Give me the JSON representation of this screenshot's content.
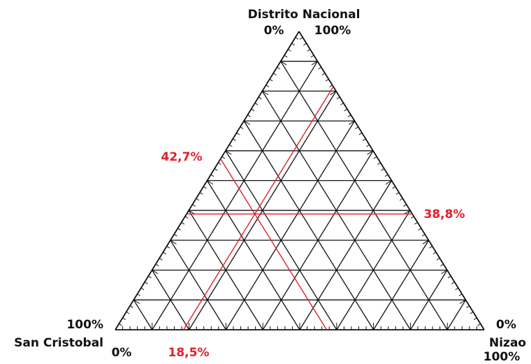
{
  "vertices": {
    "top": {
      "name": "Distrito Nacional",
      "left_label": "0%",
      "right_label": "100%"
    },
    "left": {
      "name": "San Cristobal",
      "upper_label": "100%",
      "lower_label": "0%"
    },
    "right": {
      "name": "Nizao",
      "upper_label": "0%",
      "lower_label": "100%"
    }
  },
  "markers": [
    {
      "value": 42.7,
      "label": "42,7%"
    },
    {
      "value": 38.8,
      "label": "38,8%"
    },
    {
      "value": 18.5,
      "label": "18,5%"
    }
  ]
}
